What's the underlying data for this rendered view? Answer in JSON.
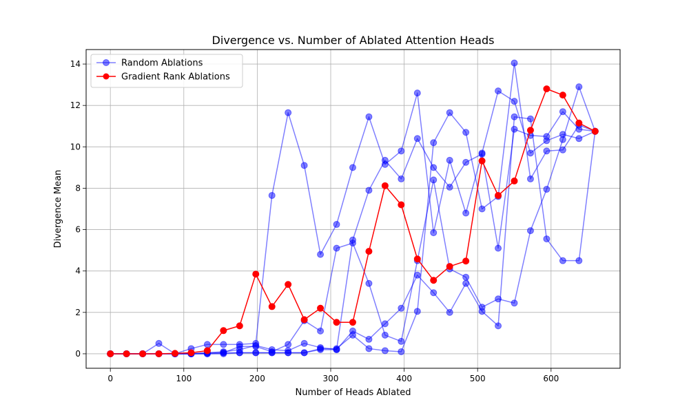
{
  "chart_data": {
    "type": "line",
    "title": "Divergence vs. Number of Ablated Attention Heads",
    "xlabel": "Number of Heads Ablated",
    "ylabel": "Divergence Mean",
    "xlim": [
      -33,
      694
    ],
    "ylim": [
      -0.7,
      14.7
    ],
    "xticks": [
      0,
      100,
      200,
      300,
      400,
      500,
      600
    ],
    "yticks": [
      0,
      2,
      4,
      6,
      8,
      10,
      12,
      14
    ],
    "grid": true,
    "legend_position": "top-left",
    "legend": [
      {
        "label": "Random Ablations",
        "color": "#0000ff"
      },
      {
        "label": "Gradient Rank Ablations",
        "color": "#ff0000"
      }
    ],
    "x": [
      0,
      22,
      44,
      66,
      88,
      110,
      132,
      154,
      176,
      198,
      220,
      242,
      264,
      286,
      308,
      330,
      352,
      374,
      396,
      418,
      440,
      462,
      484,
      506,
      528,
      550,
      572,
      594,
      616,
      638,
      660
    ],
    "series": [
      {
        "name": "Random Ablations",
        "color": "#0000ff",
        "alpha": 0.5,
        "values": [
          0,
          0,
          0,
          0.5,
          0,
          0.25,
          0.45,
          0.45,
          0.45,
          0.5,
          7.65,
          11.65,
          9.1,
          4.8,
          6.25,
          9.0,
          11.45,
          9.15,
          9.8,
          12.6,
          5.85,
          9.35,
          6.8,
          9.7,
          12.7,
          12.2,
          9.7,
          10.3,
          10.6,
          10.4,
          10.75
        ]
      },
      {
        "name": "Random Ablations",
        "color": "#0000ff",
        "alpha": 0.5,
        "values": [
          0,
          0,
          0,
          0,
          0,
          0,
          0.05,
          0.05,
          0.35,
          0.35,
          0.1,
          0.45,
          1.6,
          1.1,
          5.1,
          5.35,
          3.4,
          0.9,
          0.6,
          4.5,
          8.4,
          4.1,
          3.7,
          2.25,
          2.65,
          2.45,
          5.95,
          7.95,
          10.35,
          12.9,
          10.75
        ]
      },
      {
        "name": "Random Ablations",
        "color": "#0000ff",
        "alpha": 0.5,
        "values": [
          0,
          0,
          0,
          0,
          0,
          0,
          0.05,
          0.1,
          0.2,
          0.4,
          0.2,
          0.15,
          0.5,
          0.3,
          0.2,
          1.1,
          0.7,
          1.45,
          2.2,
          3.8,
          2.95,
          2.0,
          3.4,
          2.05,
          1.35,
          11.45,
          11.35,
          5.55,
          4.5,
          4.5,
          10.75
        ]
      },
      {
        "name": "Random Ablations",
        "color": "#0000ff",
        "alpha": 0.5,
        "values": [
          0,
          0,
          0,
          0,
          0,
          0,
          0,
          0,
          0.05,
          0.05,
          0.05,
          0.05,
          0.05,
          0.25,
          0.25,
          0.9,
          0.25,
          0.15,
          0.1,
          2.05,
          10.2,
          11.65,
          10.7,
          7.0,
          7.6,
          14.05,
          8.45,
          9.8,
          9.85,
          11.05,
          10.75
        ]
      },
      {
        "name": "Random Ablations",
        "color": "#0000ff",
        "alpha": 0.5,
        "values": [
          0,
          0,
          0,
          0,
          0,
          0,
          0,
          0.05,
          0.05,
          0.05,
          0.05,
          0.05,
          0.05,
          0.2,
          0.2,
          5.5,
          7.9,
          9.35,
          8.45,
          10.4,
          9.0,
          8.05,
          9.25,
          9.65,
          5.1,
          10.85,
          10.55,
          10.5,
          11.7,
          10.85,
          10.75
        ]
      },
      {
        "name": "Gradient Rank Ablations",
        "color": "#ff0000",
        "alpha": 1.0,
        "values": [
          0,
          0,
          0,
          0,
          0.02,
          0.05,
          0.15,
          1.12,
          1.35,
          3.85,
          2.28,
          3.35,
          1.65,
          2.2,
          1.52,
          1.52,
          4.95,
          8.12,
          7.2,
          4.58,
          3.55,
          4.22,
          4.48,
          9.32,
          7.65,
          8.35,
          10.8,
          12.8,
          12.5,
          11.15,
          10.75
        ]
      }
    ]
  }
}
